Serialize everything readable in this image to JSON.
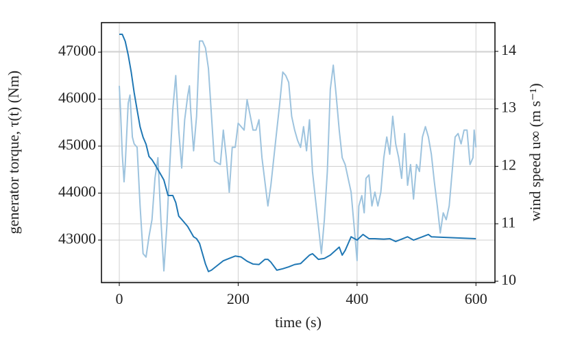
{
  "chart_data": {
    "type": "line",
    "xlabel": "time (s)",
    "ylabel": "generator torque, τ(t) (Nm)",
    "y2label": "wind speed u∞ (m s⁻¹)",
    "xlim": [
      -30,
      632
    ],
    "xticks": [
      0,
      200,
      400,
      600
    ],
    "ylim": [
      42095,
      47628
    ],
    "yticks": [
      43000,
      44000,
      45000,
      46000,
      47000
    ],
    "y2lim": [
      9.976,
      14.5
    ],
    "y2ticks": [
      10,
      11,
      12,
      13,
      14
    ],
    "grid": true,
    "series": [
      {
        "name": "generator torque",
        "color": "#1f77b4",
        "x": [
          0,
          5,
          10,
          15,
          20,
          25,
          30,
          35,
          40,
          45,
          50,
          55,
          60,
          70,
          75,
          82,
          90,
          95,
          100,
          105,
          115,
          125,
          130,
          135,
          145,
          150,
          155,
          165,
          175,
          185,
          195,
          205,
          215,
          225,
          235,
          245,
          250,
          255,
          265,
          275,
          285,
          295,
          305,
          310,
          320,
          325,
          335,
          345,
          355,
          370,
          375,
          380,
          390,
          400,
          410,
          420,
          430,
          445,
          455,
          465,
          485,
          495,
          510,
          520,
          525,
          600
        ],
        "values": [
          47380,
          47380,
          47230,
          46940,
          46580,
          46140,
          45770,
          45410,
          45190,
          45040,
          44780,
          44710,
          44610,
          44390,
          44280,
          43950,
          43950,
          43800,
          43510,
          43440,
          43290,
          43070,
          43030,
          42930,
          42490,
          42330,
          42360,
          42460,
          42560,
          42610,
          42660,
          42640,
          42550,
          42490,
          42480,
          42590,
          42590,
          42530,
          42360,
          42390,
          42430,
          42480,
          42500,
          42560,
          42680,
          42710,
          42590,
          42610,
          42680,
          42850,
          42680,
          42780,
          43070,
          43000,
          43120,
          43030,
          43030,
          43020,
          43030,
          42970,
          43070,
          43000,
          43070,
          43120,
          43070,
          43030
        ]
      },
      {
        "name": "wind speed",
        "color": "#9dc3de",
        "axis": "y2",
        "x": [
          0,
          2,
          5,
          8,
          10,
          15,
          18,
          22,
          25,
          30,
          35,
          40,
          45,
          50,
          55,
          60,
          65,
          70,
          75,
          80,
          85,
          90,
          95,
          100,
          105,
          110,
          115,
          118,
          120,
          125,
          130,
          135,
          140,
          145,
          150,
          160,
          170,
          175,
          180,
          185,
          190,
          195,
          200,
          210,
          215,
          225,
          230,
          235,
          240,
          250,
          255,
          265,
          270,
          275,
          280,
          285,
          290,
          295,
          300,
          305,
          310,
          315,
          320,
          325,
          330,
          335,
          340,
          345,
          350,
          355,
          360,
          365,
          370,
          375,
          380,
          385,
          390,
          395,
          400,
          403,
          408,
          412,
          415,
          420,
          425,
          430,
          435,
          440,
          445,
          450,
          455,
          460,
          465,
          470,
          475,
          480,
          485,
          490,
          495,
          500,
          505,
          510,
          515,
          520,
          525,
          530,
          535,
          540,
          545,
          550,
          555,
          560,
          565,
          570,
          575,
          580,
          585,
          590,
          595,
          597,
          600
        ],
        "values": [
          13.4,
          12.99,
          12.21,
          11.73,
          12.03,
          13.1,
          13.24,
          12.51,
          12.39,
          12.33,
          11.31,
          10.48,
          10.42,
          10.78,
          11.07,
          11.79,
          12.15,
          11.07,
          10.18,
          10.96,
          12.03,
          12.99,
          13.58,
          12.63,
          11.97,
          12.81,
          13.22,
          13.4,
          12.99,
          12.27,
          12.87,
          14.18,
          14.18,
          14.06,
          13.7,
          12.09,
          12.03,
          12.63,
          12.15,
          11.55,
          12.33,
          12.33,
          12.75,
          12.63,
          13.16,
          12.63,
          12.63,
          12.81,
          12.15,
          11.31,
          11.67,
          12.63,
          13.1,
          13.64,
          13.58,
          13.46,
          12.87,
          12.63,
          12.45,
          12.33,
          12.69,
          12.27,
          12.81,
          11.91,
          11.43,
          10.96,
          10.48,
          11.07,
          11.91,
          13.34,
          13.76,
          13.22,
          12.63,
          12.15,
          12.03,
          11.79,
          11.55,
          10.96,
          10.36,
          11.31,
          11.49,
          11.19,
          11.79,
          11.85,
          11.31,
          11.55,
          11.31,
          11.55,
          12.15,
          12.51,
          12.21,
          12.87,
          12.39,
          12.15,
          11.79,
          12.57,
          11.67,
          12.03,
          11.43,
          12.03,
          11.91,
          12.51,
          12.69,
          12.51,
          12.21,
          11.73,
          11.31,
          10.84,
          11.19,
          11.07,
          11.31,
          11.91,
          12.51,
          12.57,
          12.39,
          12.63,
          12.63,
          12.03,
          12.15,
          12.63,
          12.33
        ]
      }
    ]
  }
}
